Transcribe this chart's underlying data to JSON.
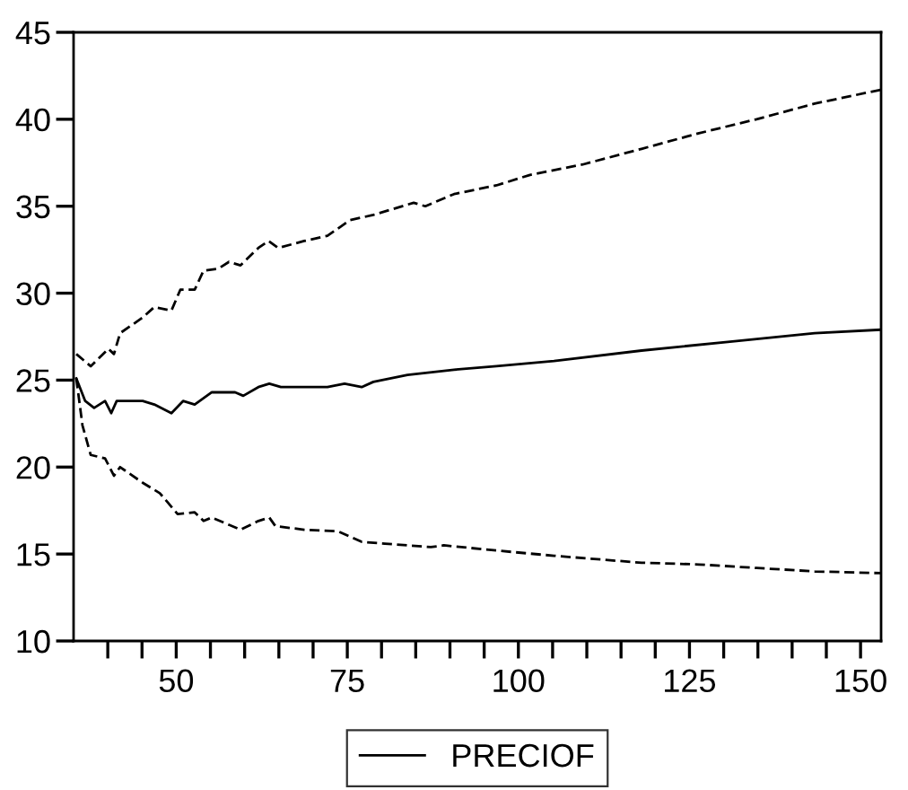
{
  "chart_data": {
    "type": "line",
    "xlim": [
      35,
      153
    ],
    "ylim": [
      10,
      45
    ],
    "xticks": [
      {
        "value": 40,
        "label": null
      },
      {
        "value": 45,
        "label": null
      },
      50,
      {
        "value": 55,
        "label": null
      },
      {
        "value": 60,
        "label": null
      },
      {
        "value": 65,
        "label": null
      },
      {
        "value": 70,
        "label": null
      },
      75,
      {
        "value": 80,
        "label": null
      },
      {
        "value": 85,
        "label": null
      },
      {
        "value": 90,
        "label": null
      },
      {
        "value": 95,
        "label": null
      },
      100,
      {
        "value": 105,
        "label": null
      },
      {
        "value": 110,
        "label": null
      },
      {
        "value": 115,
        "label": null
      },
      {
        "value": 120,
        "label": null
      },
      125,
      {
        "value": 130,
        "label": null
      },
      {
        "value": 135,
        "label": null
      },
      {
        "value": 140,
        "label": null
      },
      {
        "value": 145,
        "label": null
      },
      150
    ],
    "yticks": [
      10,
      15,
      20,
      25,
      30,
      35,
      40,
      45
    ],
    "grid": false,
    "legend": "bottom",
    "marker": "none",
    "series": [
      {
        "name": "PRECIOF",
        "color": "#000000",
        "line_style": "solid",
        "x": [
          35.4,
          36.7,
          38,
          39.6,
          40.5,
          41.3,
          45.1,
          46.8,
          49.3,
          51,
          52.7,
          55.2,
          58.6,
          59.8,
          62,
          63.6,
          65.3,
          72.1,
          74.6,
          77.1,
          78.8,
          83.8,
          90.6,
          96.8,
          105.2,
          118,
          130.6,
          143.3,
          153
        ],
        "values": [
          25.1,
          23.8,
          23.4,
          23.8,
          23.1,
          23.8,
          23.8,
          23.6,
          23.1,
          23.8,
          23.6,
          24.3,
          24.3,
          24.1,
          24.6,
          24.8,
          24.6,
          24.6,
          24.8,
          24.6,
          24.9,
          25.3,
          25.6,
          25.8,
          26.1,
          26.7,
          27.2,
          27.7,
          27.9
        ]
      },
      {
        "color": "#000000",
        "line_style": "dashed",
        "x": [
          35.4,
          37.5,
          40.1,
          40.9,
          41.8,
          45.1,
          46.8,
          49.3,
          50.6,
          52.7,
          54,
          56.1,
          57.7,
          59.4,
          62,
          63.5,
          64.9,
          68.7,
          72.1,
          75.4,
          78.8,
          84.7,
          86.4,
          90.6,
          96.8,
          101.7,
          109.4,
          118,
          126.4,
          134.8,
          143.3,
          153
        ],
        "values": [
          26.5,
          25.8,
          26.8,
          26.5,
          27.7,
          28.6,
          29.2,
          29.0,
          30.2,
          30.2,
          31.3,
          31.4,
          31.8,
          31.6,
          32.6,
          33.0,
          32.6,
          33.0,
          33.3,
          34.2,
          34.5,
          35.2,
          35.0,
          35.7,
          36.2,
          36.8,
          37.4,
          38.3,
          39.2,
          40.0,
          40.9,
          41.7
        ]
      },
      {
        "color": "#000000",
        "line_style": "dashed",
        "x": [
          35.4,
          36.3,
          37.5,
          39.6,
          40.9,
          41.8,
          45.1,
          47.6,
          50.2,
          52.7,
          54,
          55.2,
          59.4,
          62,
          63.6,
          64.5,
          68.7,
          73.7,
          77.1,
          80.5,
          87.2,
          89.1,
          96.8,
          105.2,
          118,
          126.4,
          134.8,
          143.3,
          153
        ],
        "values": [
          25.1,
          22.4,
          20.7,
          20.5,
          19.5,
          20.0,
          19.1,
          18.5,
          17.3,
          17.4,
          16.9,
          17.1,
          16.4,
          16.9,
          17.1,
          16.6,
          16.4,
          16.3,
          15.7,
          15.6,
          15.4,
          15.5,
          15.2,
          14.9,
          14.5,
          14.4,
          14.2,
          14.0,
          13.9
        ]
      }
    ]
  }
}
